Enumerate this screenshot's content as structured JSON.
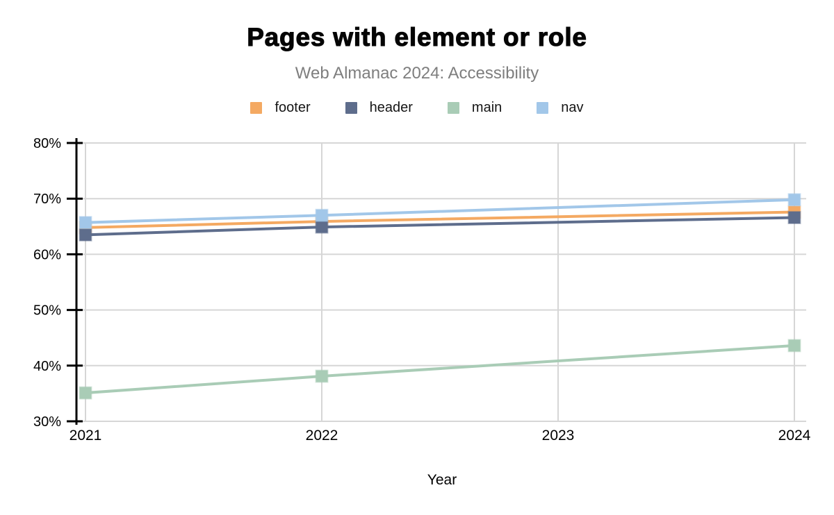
{
  "header": {
    "title": "Pages with element or role",
    "subtitle": "Web Almanac 2024: Accessibility"
  },
  "legend": {
    "position": "top",
    "items": [
      {
        "label": "footer",
        "color": "#F4A962"
      },
      {
        "label": "header",
        "color": "#5E6D8C"
      },
      {
        "label": "main",
        "color": "#A9CCB6"
      },
      {
        "label": "nav",
        "color": "#A2C7E9"
      }
    ]
  },
  "chart_data": {
    "type": "line",
    "title": "Pages with element or role",
    "subtitle": "Web Almanac 2024: Accessibility",
    "xlabel": "Year",
    "ylabel": "",
    "x": [
      2021,
      2022,
      2024
    ],
    "xticks": [
      2021,
      2022,
      2023,
      2024
    ],
    "ylim": [
      30,
      80
    ],
    "yticks": [
      30,
      40,
      50,
      60,
      70,
      80
    ],
    "ytick_suffix": "%",
    "grid": true,
    "grid_color": "#D6D6D6",
    "axis_color": "#000000",
    "marker_shape": "square",
    "legend_position": "top",
    "series": [
      {
        "name": "footer",
        "color": "#F4A962",
        "values": [
          64.8,
          65.9,
          67.6
        ]
      },
      {
        "name": "header",
        "color": "#5E6D8C",
        "values": [
          63.5,
          64.9,
          66.6
        ]
      },
      {
        "name": "main",
        "color": "#A9CCB6",
        "values": [
          35.1,
          38.1,
          43.6
        ]
      },
      {
        "name": "nav",
        "color": "#A2C7E9",
        "values": [
          65.7,
          67.0,
          69.8
        ]
      }
    ]
  }
}
